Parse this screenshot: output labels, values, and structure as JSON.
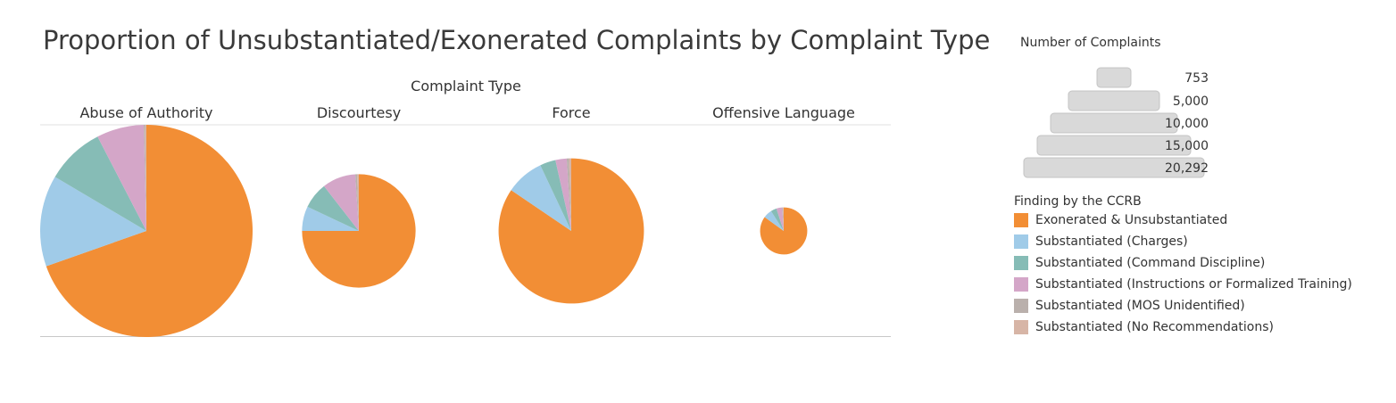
{
  "title": "Proportion of Unsubstantiated/Exonerated Complaints by Complaint Type",
  "chart_data": {
    "type": "pie",
    "x_axis_title": "Complaint Type",
    "categories": [
      "Abuse of Authority",
      "Discourtesy",
      "Force",
      "Offensive Language"
    ],
    "total_complaints": [
      20292,
      5800,
      9500,
      1000
    ],
    "findings": [
      "Exonerated & Unsubstantiated",
      "Substantiated (Charges)",
      "Substantiated (Command Discipline)",
      "Substantiated (Instructions or Formalized Training)",
      "Substantiated (MOS Unidentified)",
      "Substantiated (No Recommendations)"
    ],
    "proportions": [
      [
        0.696,
        0.139,
        0.089,
        0.072,
        0.002,
        0.002
      ],
      [
        0.75,
        0.07,
        0.075,
        0.095,
        0.005,
        0.005
      ],
      [
        0.845,
        0.085,
        0.035,
        0.025,
        0.005,
        0.005
      ],
      [
        0.85,
        0.06,
        0.04,
        0.04,
        0.005,
        0.005
      ]
    ],
    "colors": [
      "#F28E35",
      "#A0CBE8",
      "#86BCB6",
      "#D4A6C8",
      "#BAB0AC",
      "#D7B5A6"
    ]
  },
  "size_legend": {
    "title": "Number of Complaints",
    "values": [
      "753",
      "5,000",
      "10,000",
      "15,000",
      "20,292"
    ]
  },
  "color_legend": {
    "title": "Finding by the CCRB"
  }
}
